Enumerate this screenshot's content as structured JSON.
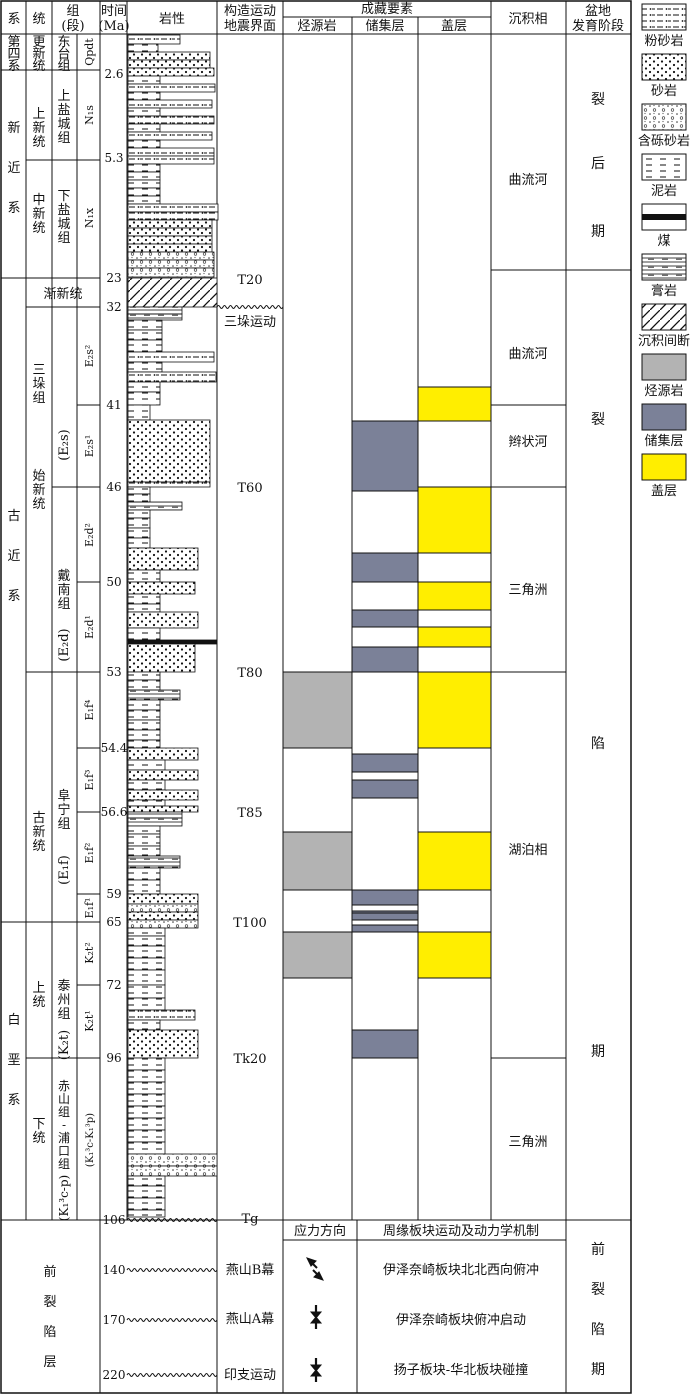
{
  "header": {
    "system": "系",
    "series": "统",
    "group_line1": "组",
    "group_line2": "(段)",
    "time_line1": "时间",
    "time_line2": "(Ma)",
    "lithology": "岩性",
    "tectonic_line1": "构造运动",
    "tectonic_line2": "地震界面",
    "elements_title": "成藏要素",
    "source": "烃源岩",
    "reservoir": "储集层",
    "cap": "盖层",
    "facies": "沉积相",
    "stage_line1": "盆地",
    "stage_line2": "发育阶段"
  },
  "systems": [
    {
      "chars": [
        "第",
        "四",
        "系"
      ]
    },
    {
      "chars": [
        "新",
        "近",
        "系"
      ]
    },
    {
      "chars": [
        "古",
        "近",
        "系"
      ]
    },
    {
      "chars": [
        "白",
        "垩",
        "系"
      ]
    }
  ],
  "series_list": [
    {
      "chars": [
        "更",
        "新",
        "统"
      ]
    },
    {
      "chars": [
        "上",
        "新",
        "统"
      ]
    },
    {
      "chars": [
        "中",
        "新",
        "统"
      ]
    },
    {
      "text": "渐新统"
    },
    {
      "chars": [
        "始",
        "新",
        "统"
      ]
    },
    {
      "chars": [
        "古",
        "新",
        "统"
      ]
    },
    {
      "chars": [
        "上",
        "统"
      ]
    },
    {
      "chars": [
        "下",
        "统"
      ]
    }
  ],
  "formations": [
    {
      "chars": [
        "东",
        "台",
        "组"
      ]
    },
    {
      "chars": [
        "上",
        "盐",
        "城",
        "组"
      ]
    },
    {
      "chars": [
        "下",
        "盐",
        "城",
        "组"
      ]
    },
    {
      "chars": [
        "三",
        "垛",
        "组"
      ],
      "code": "(E₂s)"
    },
    {
      "chars": [
        "戴",
        "南",
        "组"
      ],
      "code": "(E₂d)"
    },
    {
      "chars": [
        "阜",
        "宁",
        "组"
      ],
      "code": "(E₁f)"
    },
    {
      "chars": [
        "泰",
        "州",
        "组"
      ],
      "code": "(K₂t)"
    },
    {
      "chars": [
        "赤",
        "山",
        "组",
        "-",
        "浦",
        "口",
        "组"
      ],
      "code": "(K₁³c-p)"
    }
  ],
  "members": [
    "Qpdt",
    "N₁s",
    "N₁x",
    "E₂s²",
    "E₂s¹",
    "E₂d²",
    "E₂d¹",
    "E₁f⁴",
    "E₁f³",
    "E₁f²",
    "E₁f¹",
    "K₂t²",
    "K₂t¹",
    "(K₁³c-K₁³p)"
  ],
  "ages": [
    "2.6",
    "5.3",
    "23",
    "32",
    "41",
    "46",
    "50",
    "53",
    "54.4",
    "56.6",
    "59",
    "65",
    "72",
    "96",
    "106",
    "140",
    "170",
    "220"
  ],
  "seismic": [
    "T20",
    "三垛运动",
    "T60",
    "T80",
    "T85",
    "T100",
    "Tk20",
    "Tg"
  ],
  "lower_tectonics": [
    "燕山B幕",
    "燕山A幕",
    "印支运动"
  ],
  "facies": [
    "曲流河",
    "曲流河",
    "辫状河",
    "三角洲",
    "湖泊相",
    "三角洲"
  ],
  "stage_upper": [
    "裂",
    "后",
    "期"
  ],
  "stage_main": [
    "裂",
    "陷",
    "期"
  ],
  "prerift": {
    "label_chars": [
      "前",
      "裂",
      "陷",
      "层"
    ],
    "stress_header": "应力方向",
    "mechanism_header": "周缘板块运动及动力学机制",
    "mechanisms": [
      "伊泽奈崎板块北北西向俯冲",
      "伊泽奈崎板块俯冲启动",
      "扬子板块-华北板块碰撞"
    ],
    "stage_chars": [
      "前",
      "裂",
      "陷",
      "期"
    ]
  },
  "legend": [
    {
      "label": "粉砂岩",
      "icon": "siltstone-swatch"
    },
    {
      "label": "砂岩",
      "icon": "sandstone-swatch"
    },
    {
      "label": "含砾砂岩",
      "icon": "pebbly-sandstone-swatch"
    },
    {
      "label": "泥岩",
      "icon": "mudstone-swatch"
    },
    {
      "label": "煤",
      "icon": "coal-swatch"
    },
    {
      "label": "膏岩",
      "icon": "gypsum-swatch"
    },
    {
      "label": "沉积间断",
      "icon": "hiatus-swatch"
    },
    {
      "label": "烃源岩",
      "icon": "source-rock-swatch",
      "color": "#b3b3b3"
    },
    {
      "label": "储集层",
      "icon": "reservoir-swatch",
      "color": "#7b8198"
    },
    {
      "label": "盖层",
      "icon": "cap-rock-swatch",
      "color": "#ffee00"
    }
  ]
}
